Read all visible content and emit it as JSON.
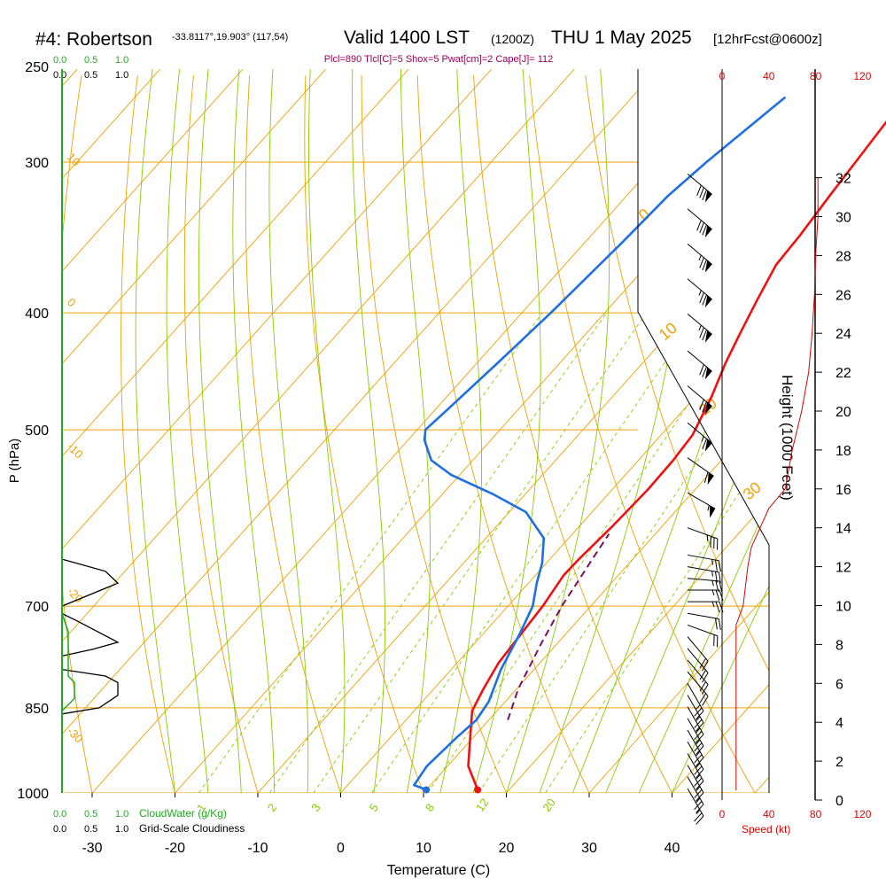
{
  "header": {
    "station": "#4: Robertson",
    "coords": "-33.8117°,19.903° (117,54)",
    "valid": "Valid 1400 LST",
    "zulu": "(1200Z)",
    "date": "THU 1 May 2025",
    "forecast": "[12hrFcst@0600z]",
    "indices": "Plcl=890 Tlcl[C]=5 Shox=5 Pwat[cm]=2 Cape[J]= 112"
  },
  "colors": {
    "temperature": "#ee1111",
    "dewpoint": "#1e6fe0",
    "parcel": "#7a1060",
    "isotherm_dry": "#f0a000",
    "moist_adiabat": "#88cc00",
    "mixing_ratio": "#88cc00",
    "cloudwater": "#22aa22",
    "speed": "#dd0000",
    "index_text": "#990055"
  },
  "labels": {
    "cloudwater_title": "CloudWater (g/Kg)",
    "cloudiness_title": "Grid-Scale Cloudiness",
    "speed_title": "Speed (kt)",
    "height_title": "Height (1000 Feet)",
    "ylabel": "P (hPa)",
    "xlabel": "Temperature (C)",
    "scale_ticks": [
      "0.0",
      "0.5",
      "1.0"
    ]
  },
  "chart_data": {
    "type": "line",
    "title": "#4: Robertson  Valid 1400 LST (1200Z) THU 1 May 2025 [12hrFcst@0600z]",
    "xlabel": "Temperature (C)",
    "ylabel": "P (hPa)",
    "x_ticks": [
      -30,
      -20,
      -10,
      0,
      10,
      20,
      30,
      40
    ],
    "p_ticks": [
      250,
      300,
      400,
      500,
      700,
      850,
      1000
    ],
    "height_ticks": [
      0,
      2,
      4,
      6,
      8,
      10,
      12,
      14,
      16,
      18,
      20,
      22,
      24,
      26,
      28,
      30,
      32
    ],
    "speed_ticks": [
      0,
      40,
      80,
      120
    ],
    "mixing_ratio_labels": [
      "1",
      "2",
      "3",
      "5",
      "8",
      "12",
      "20"
    ],
    "isotherm_labels": [
      "10",
      "0",
      "-10",
      "-20",
      "-30"
    ],
    "adiabat_labels": [
      "0",
      "10",
      "20",
      "30"
    ],
    "series": [
      {
        "name": "Temperature",
        "points": [
          [
            16.2,
            994
          ],
          [
            12.5,
            950
          ],
          [
            8.5,
            880
          ],
          [
            7,
            855
          ],
          [
            6,
            820
          ],
          [
            5,
            780
          ],
          [
            4.2,
            700
          ],
          [
            3.4,
            660
          ],
          [
            3.5,
            640
          ],
          [
            4,
            600
          ],
          [
            4.3,
            560
          ],
          [
            4.2,
            530
          ],
          [
            3.8,
            505
          ],
          [
            2,
            470
          ],
          [
            0,
            440
          ],
          [
            -1.5,
            415
          ],
          [
            -3,
            390
          ],
          [
            -4.5,
            365
          ],
          [
            -4.8,
            345
          ],
          [
            -5.5,
            320
          ],
          [
            -6,
            300
          ],
          [
            -7,
            265
          ]
        ]
      },
      {
        "name": "Dewpoint",
        "points": [
          [
            10,
            994
          ],
          [
            8,
            985
          ],
          [
            7.5,
            950
          ],
          [
            8,
            900
          ],
          [
            8.5,
            870
          ],
          [
            8,
            840
          ],
          [
            6,
            790
          ],
          [
            4.5,
            740
          ],
          [
            3,
            700
          ],
          [
            1,
            670
          ],
          [
            -0.5,
            645
          ],
          [
            -3,
            615
          ],
          [
            -8,
            585
          ],
          [
            -14,
            565
          ],
          [
            -21,
            545
          ],
          [
            -25,
            530
          ],
          [
            -28,
            510
          ],
          [
            -29,
            500
          ],
          [
            -28.5,
            480
          ],
          [
            -27.5,
            440
          ],
          [
            -26.5,
            400
          ],
          [
            -25.5,
            350
          ],
          [
            -25,
            320
          ],
          [
            -24,
            300
          ],
          [
            -21.5,
            265
          ]
        ]
      },
      {
        "name": "Parcel",
        "points": [
          [
            12.3,
            870
          ],
          [
            10.2,
            820
          ],
          [
            8,
            750
          ],
          [
            6.5,
            700
          ],
          [
            5.6,
            660
          ],
          [
            5,
            635
          ],
          [
            4.4,
            610
          ]
        ]
      }
    ],
    "cloudiness": [
      [
        0,
        640
      ],
      [
        0.35,
        655
      ],
      [
        0.45,
        670
      ],
      [
        0,
        700
      ],
      [
        0,
        710
      ],
      [
        0.12,
        720
      ],
      [
        0.45,
        750
      ],
      [
        0.25,
        760
      ],
      [
        0,
        770
      ],
      [
        0,
        790
      ],
      [
        0.35,
        800
      ],
      [
        0.45,
        810
      ],
      [
        0.45,
        830
      ],
      [
        0.3,
        850
      ],
      [
        0,
        860
      ]
    ],
    "cloudwater": [
      [
        0,
        710
      ],
      [
        0.05,
        735
      ],
      [
        0.05,
        760
      ],
      [
        0.05,
        800
      ],
      [
        0.1,
        810
      ],
      [
        0.1,
        835
      ],
      [
        0.05,
        845
      ],
      [
        0,
        855
      ]
    ],
    "wind_speed_kt": [
      [
        12,
        0.5
      ],
      [
        12,
        1
      ],
      [
        12,
        3
      ],
      [
        12,
        6
      ],
      [
        12,
        9
      ],
      [
        18,
        10
      ],
      [
        20,
        11
      ],
      [
        22,
        12
      ],
      [
        25,
        13
      ],
      [
        40,
        15
      ],
      [
        54,
        16
      ],
      [
        60,
        18
      ],
      [
        68,
        20
      ],
      [
        74,
        22
      ],
      [
        77,
        24
      ],
      [
        79,
        26
      ],
      [
        80,
        28
      ],
      [
        82,
        30
      ],
      [
        82,
        32
      ]
    ],
    "wind_barbs": [
      {
        "h": 0.6,
        "speed": 25,
        "dir": 150
      },
      {
        "h": 1.2,
        "speed": 25,
        "dir": 150
      },
      {
        "h": 1.8,
        "speed": 25,
        "dir": 150
      },
      {
        "h": 2.4,
        "speed": 25,
        "dir": 150
      },
      {
        "h": 3.0,
        "speed": 25,
        "dir": 150
      },
      {
        "h": 3.6,
        "speed": 25,
        "dir": 150
      },
      {
        "h": 4.2,
        "speed": 25,
        "dir": 150
      },
      {
        "h": 4.8,
        "speed": 25,
        "dir": 150
      },
      {
        "h": 5.4,
        "speed": 25,
        "dir": 150
      },
      {
        "h": 6.0,
        "speed": 25,
        "dir": 150
      },
      {
        "h": 6.6,
        "speed": 20,
        "dir": 140
      },
      {
        "h": 7.2,
        "speed": 20,
        "dir": 140
      },
      {
        "h": 7.8,
        "speed": 20,
        "dir": 140
      },
      {
        "h": 8.4,
        "speed": 20,
        "dir": 140
      },
      {
        "h": 9.0,
        "speed": 20,
        "dir": 110
      },
      {
        "h": 9.6,
        "speed": 20,
        "dir": 100
      },
      {
        "h": 10.2,
        "speed": 25,
        "dir": 90
      },
      {
        "h": 10.8,
        "speed": 25,
        "dir": 90
      },
      {
        "h": 11.4,
        "speed": 25,
        "dir": 95
      },
      {
        "h": 12.0,
        "speed": 25,
        "dir": 100
      },
      {
        "h": 12.6,
        "speed": 25,
        "dir": 100
      },
      {
        "h": 14.0,
        "speed": 35,
        "dir": 110
      },
      {
        "h": 15.8,
        "speed": 55,
        "dir": 120
      },
      {
        "h": 17.6,
        "speed": 60,
        "dir": 125
      },
      {
        "h": 19.4,
        "speed": 65,
        "dir": 130
      },
      {
        "h": 21.3,
        "speed": 70,
        "dir": 130
      },
      {
        "h": 23.1,
        "speed": 70,
        "dir": 130
      },
      {
        "h": 25.0,
        "speed": 75,
        "dir": 130
      },
      {
        "h": 26.8,
        "speed": 75,
        "dir": 130
      },
      {
        "h": 28.6,
        "speed": 75,
        "dir": 130
      },
      {
        "h": 30.4,
        "speed": 80,
        "dir": 130
      },
      {
        "h": 32.2,
        "speed": 80,
        "dir": 130
      }
    ]
  }
}
